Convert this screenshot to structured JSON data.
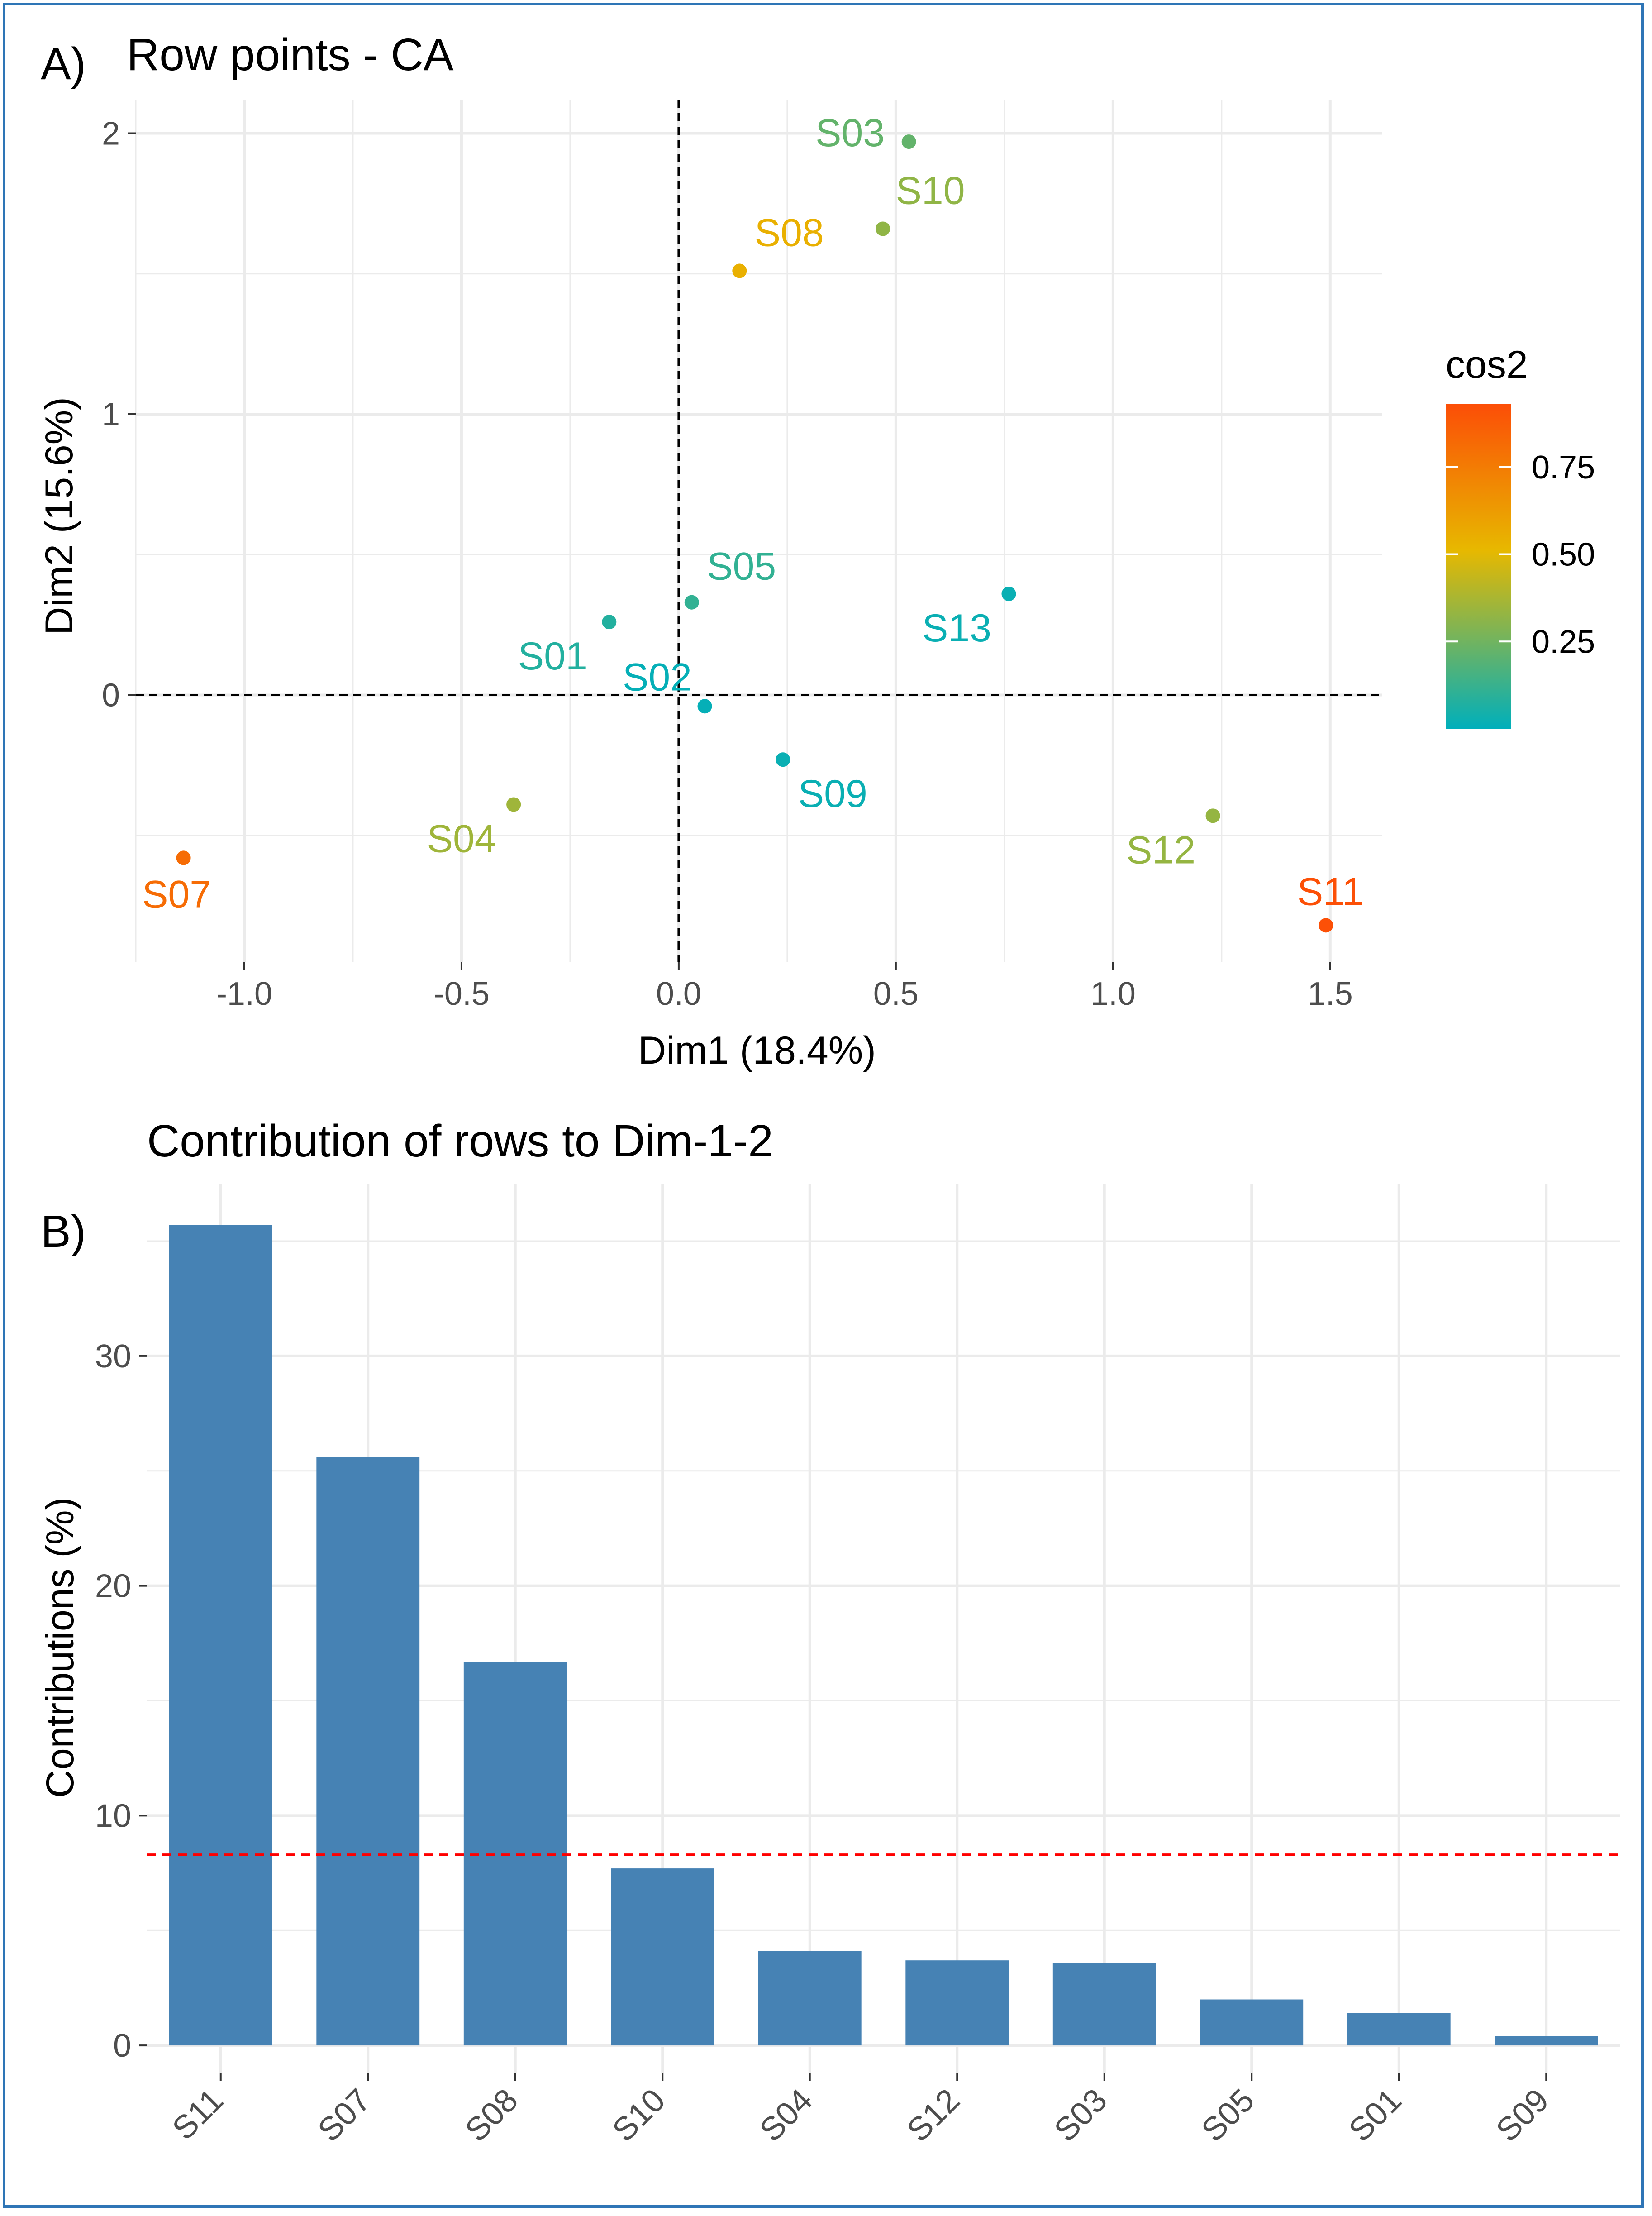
{
  "panel_a_label": "A)",
  "panel_b_label": "B)",
  "chart_data": [
    {
      "type": "scatter",
      "title": "Row points - CA",
      "xlabel": "Dim1 (18.4%)",
      "ylabel": "Dim2 (15.6%)",
      "xlim": [
        -1.25,
        1.62
      ],
      "ylim": [
        -0.95,
        2.12
      ],
      "x_ticks": [
        -1.0,
        -0.5,
        0.0,
        0.5,
        1.0,
        1.5
      ],
      "x_tick_labels": [
        "-1.0",
        "-0.5",
        "0.0",
        "0.5",
        "1.0",
        "1.5"
      ],
      "y_ticks": [
        0,
        1,
        2
      ],
      "y_tick_labels": [
        "0",
        "1",
        "2"
      ],
      "grid": true,
      "reference_lines": {
        "x": 0,
        "y": 0,
        "style": "dashed"
      },
      "legend": {
        "title": "cos2",
        "position": "right",
        "type": "gradient",
        "colors": [
          "#00AFBB",
          "#E7B800",
          "#FC4E07"
        ],
        "range": [
          0.0,
          0.93
        ],
        "ticks": [
          0.25,
          0.5,
          0.75
        ],
        "tick_labels": [
          "0.25",
          "0.50",
          "0.75"
        ]
      },
      "points": [
        {
          "label": "S03",
          "x": 0.53,
          "y": 1.97,
          "cos2": 0.2
        },
        {
          "label": "S10",
          "x": 0.47,
          "y": 1.66,
          "cos2": 0.29
        },
        {
          "label": "S08",
          "x": 0.14,
          "y": 1.51,
          "cos2": 0.5
        },
        {
          "label": "S05",
          "x": 0.03,
          "y": 0.33,
          "cos2": 0.1
        },
        {
          "label": "S13",
          "x": 0.76,
          "y": 0.36,
          "cos2": 0.02
        },
        {
          "label": "S01",
          "x": -0.16,
          "y": 0.26,
          "cos2": 0.07
        },
        {
          "label": "S02",
          "x": 0.06,
          "y": -0.04,
          "cos2": 0.01
        },
        {
          "label": "S09",
          "x": 0.24,
          "y": -0.23,
          "cos2": 0.02
        },
        {
          "label": "S04",
          "x": -0.38,
          "y": -0.39,
          "cos2": 0.32
        },
        {
          "label": "S12",
          "x": 1.23,
          "y": -0.43,
          "cos2": 0.3
        },
        {
          "label": "S07",
          "x": -1.14,
          "y": -0.58,
          "cos2": 0.8
        },
        {
          "label": "S11",
          "x": 1.49,
          "y": -0.82,
          "cos2": 0.92
        }
      ]
    },
    {
      "type": "bar",
      "title": "Contribution of rows to Dim-1-2",
      "xlabel": "",
      "ylabel": "Contributions (%)",
      "categories": [
        "S11",
        "S07",
        "S08",
        "S10",
        "S04",
        "S12",
        "S03",
        "S05",
        "S01",
        "S09"
      ],
      "values": [
        35.7,
        25.6,
        16.7,
        7.7,
        4.1,
        3.7,
        3.6,
        2.0,
        1.4,
        0.4
      ],
      "ylim": [
        -1.2,
        37.5
      ],
      "y_ticks": [
        0,
        10,
        20,
        30
      ],
      "y_tick_labels": [
        "0",
        "10",
        "20",
        "30"
      ],
      "bar_color": "#4682B4",
      "reference_line": {
        "y": 8.3,
        "color": "#FF0000",
        "style": "dashed"
      },
      "grid": true
    }
  ]
}
